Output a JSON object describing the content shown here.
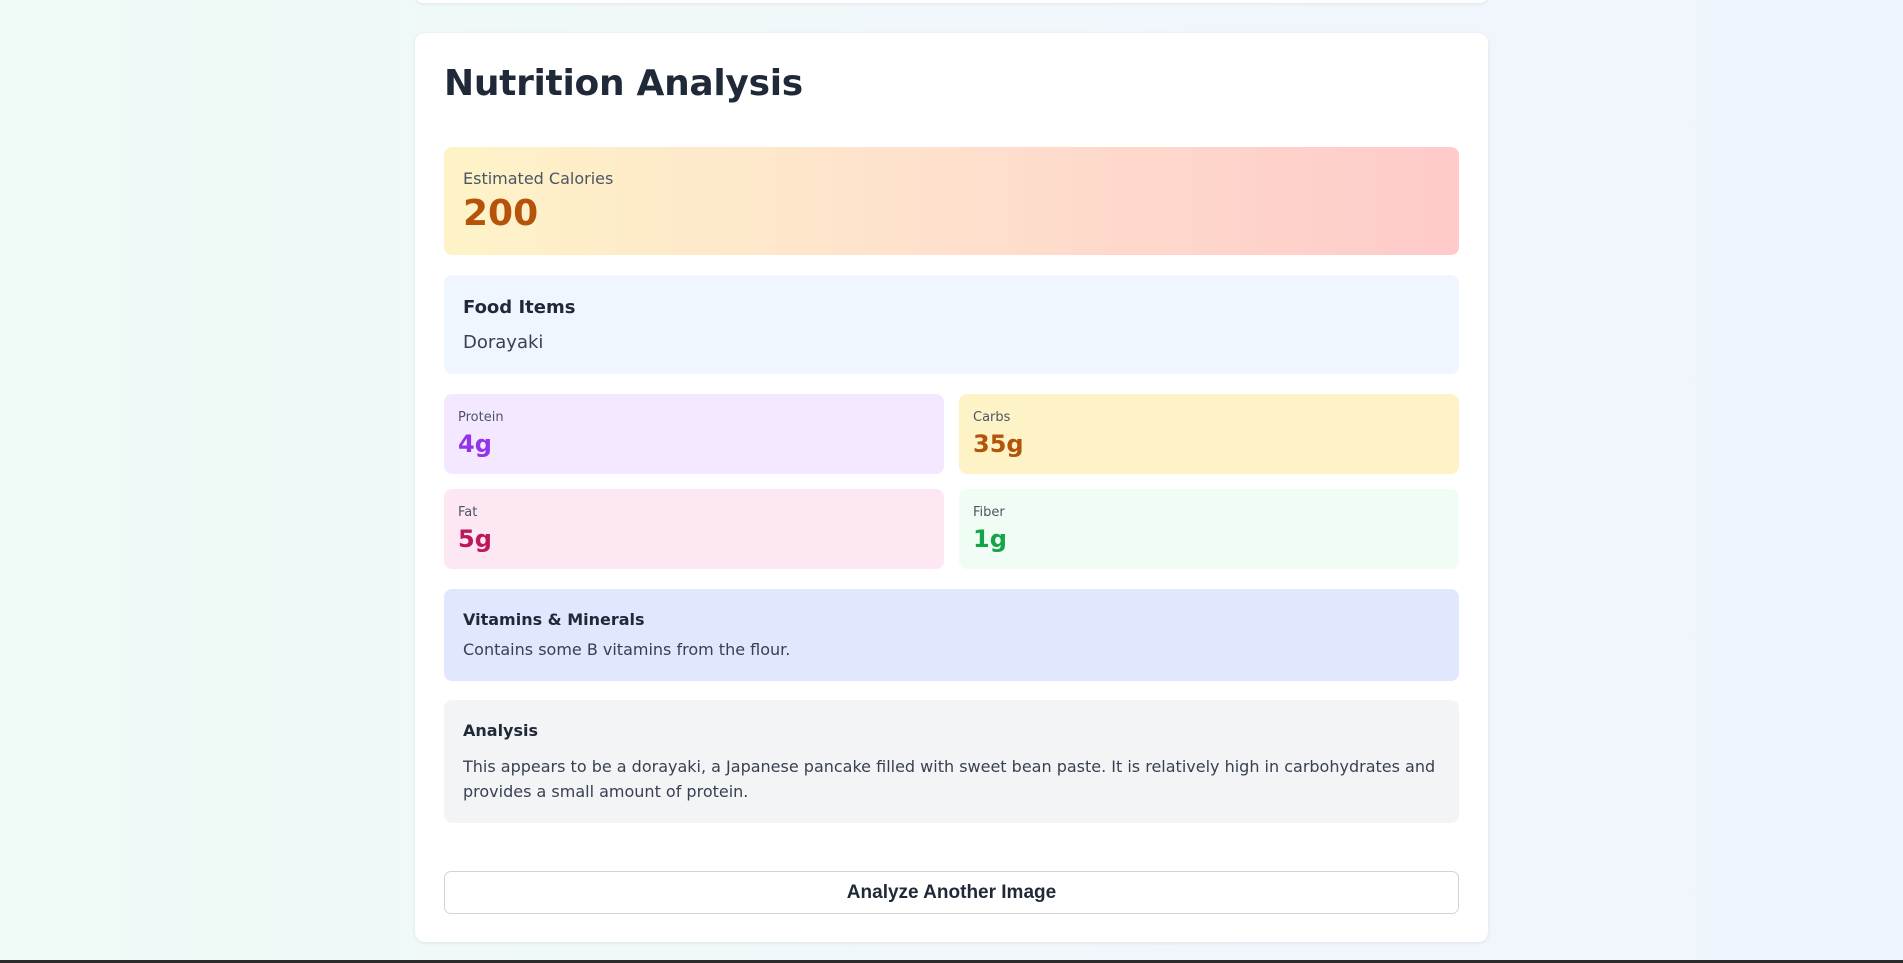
{
  "page": {
    "title": "Nutrition Analysis"
  },
  "calories": {
    "label": "Estimated Calories",
    "value": "200"
  },
  "food_items": {
    "heading": "Food Items",
    "items": [
      "Dorayaki"
    ]
  },
  "macros": {
    "protein": {
      "label": "Protein",
      "value": "4g",
      "color": "#9333ea"
    },
    "carbs": {
      "label": "Carbs",
      "value": "35g",
      "color": "#b45309"
    },
    "fat": {
      "label": "Fat",
      "value": "5g",
      "color": "#be185d"
    },
    "fiber": {
      "label": "Fiber",
      "value": "1g",
      "color": "#16a34a"
    }
  },
  "vitamins": {
    "heading": "Vitamins & Minerals",
    "text": "Contains some B vitamins from the flour."
  },
  "analysis": {
    "heading": "Analysis",
    "text": "This appears to be a dorayaki, a Japanese pancake filled with sweet bean paste. It is relatively high in carbohydrates and provides a small amount of protein."
  },
  "actions": {
    "analyze_another_label": "Analyze Another Image"
  }
}
